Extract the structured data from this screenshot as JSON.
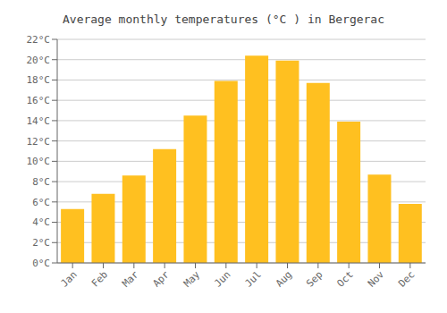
{
  "chart_data": {
    "type": "bar",
    "title": "Average monthly temperatures (°C ) in Bergerac",
    "categories": [
      "Jan",
      "Feb",
      "Mar",
      "Apr",
      "May",
      "Jun",
      "Jul",
      "Aug",
      "Sep",
      "Oct",
      "Nov",
      "Dec"
    ],
    "values": [
      5.3,
      6.8,
      8.6,
      11.2,
      14.5,
      17.9,
      20.4,
      19.9,
      17.7,
      13.9,
      8.7,
      5.8
    ],
    "color": "#FFC020",
    "ylim": [
      0,
      22
    ],
    "yticks": [
      {
        "value": 0,
        "label": "0°C"
      },
      {
        "value": 2,
        "label": "2°C"
      },
      {
        "value": 4,
        "label": "4°C"
      },
      {
        "value": 6,
        "label": "6°C"
      },
      {
        "value": 8,
        "label": "8°C"
      },
      {
        "value": 10,
        "label": "10°C"
      },
      {
        "value": 12,
        "label": "12°C"
      },
      {
        "value": 14,
        "label": "14°C"
      },
      {
        "value": 16,
        "label": "16°C"
      },
      {
        "value": 18,
        "label": "18°C"
      },
      {
        "value": 20,
        "label": "20°C"
      },
      {
        "value": 22,
        "label": "22°C"
      }
    ],
    "grid": true
  }
}
